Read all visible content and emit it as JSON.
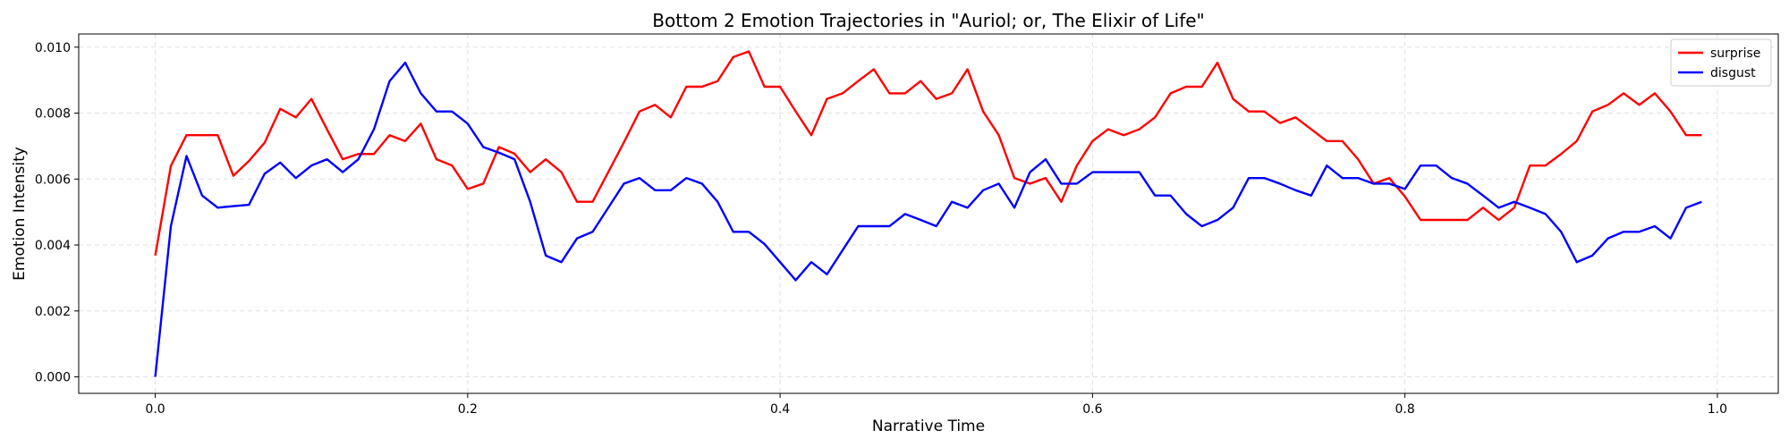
{
  "chart_data": {
    "type": "line",
    "title": "Bottom 2 Emotion Trajectories in \"Auriol; or, The Elixir of Life\"",
    "xlabel": "Narrative Time",
    "ylabel": "Emotion Intensity",
    "xlim": [
      -0.049,
      1.039
    ],
    "ylim": [
      -0.0005,
      0.0104
    ],
    "xticks": [
      0.0,
      0.2,
      0.4,
      0.6,
      0.8,
      1.0
    ],
    "xtick_labels": [
      "0.0",
      "0.2",
      "0.4",
      "0.6",
      "0.8",
      "1.0"
    ],
    "yticks": [
      0.0,
      0.002,
      0.004,
      0.006,
      0.008,
      0.01
    ],
    "ytick_labels": [
      "0.000",
      "0.002",
      "0.004",
      "0.006",
      "0.008",
      "0.010"
    ],
    "grid": true,
    "legend_position": "top-right",
    "x": [
      0.0,
      0.01,
      0.02,
      0.03,
      0.04,
      0.05,
      0.06,
      0.07,
      0.08,
      0.09,
      0.1,
      0.11,
      0.12,
      0.13,
      0.14,
      0.15,
      0.16,
      0.17,
      0.18,
      0.19,
      0.2,
      0.21,
      0.22,
      0.23,
      0.24,
      0.25,
      0.26,
      0.27,
      0.28,
      0.29,
      0.3,
      0.31,
      0.32,
      0.33,
      0.34,
      0.35,
      0.36,
      0.37,
      0.38,
      0.39,
      0.4,
      0.41,
      0.42,
      0.43,
      0.44,
      0.45,
      0.46,
      0.47,
      0.48,
      0.49,
      0.5,
      0.51,
      0.52,
      0.53,
      0.54,
      0.55,
      0.56,
      0.57,
      0.58,
      0.59,
      0.6,
      0.61,
      0.62,
      0.63,
      0.64,
      0.65,
      0.66,
      0.67,
      0.68,
      0.69,
      0.7,
      0.71,
      0.72,
      0.73,
      0.74,
      0.75,
      0.76,
      0.77,
      0.78,
      0.79,
      0.8,
      0.81,
      0.82,
      0.83,
      0.84,
      0.85,
      0.86,
      0.87,
      0.88,
      0.89,
      0.9,
      0.91,
      0.92,
      0.93,
      0.94,
      0.95,
      0.96,
      0.97,
      0.98,
      0.99
    ],
    "series": [
      {
        "name": "surprise",
        "color": "#ff0000",
        "values": [
          0.00368,
          0.0064,
          0.00733,
          0.00733,
          0.00733,
          0.0061,
          0.00655,
          0.0071,
          0.00813,
          0.00787,
          0.00843,
          0.0075,
          0.0066,
          0.00676,
          0.00676,
          0.00733,
          0.00715,
          0.00768,
          0.0066,
          0.00641,
          0.0057,
          0.00586,
          0.00697,
          0.00677,
          0.00621,
          0.0066,
          0.00621,
          0.00531,
          0.00531,
          0.00621,
          0.00711,
          0.00805,
          0.00825,
          0.00787,
          0.0088,
          0.0088,
          0.00897,
          0.0097,
          0.00987,
          0.0088,
          0.0088,
          0.00805,
          0.00733,
          0.00843,
          0.0086,
          0.00897,
          0.00933,
          0.0086,
          0.0086,
          0.00897,
          0.00843,
          0.0086,
          0.00933,
          0.00805,
          0.00733,
          0.00603,
          0.00586,
          0.00603,
          0.00531,
          0.00641,
          0.00715,
          0.00751,
          0.00733,
          0.00751,
          0.00787,
          0.0086,
          0.0088,
          0.0088,
          0.00953,
          0.00843,
          0.00805,
          0.00805,
          0.0077,
          0.00787,
          0.00751,
          0.00715,
          0.00715,
          0.0066,
          0.00586,
          0.00603,
          0.00547,
          0.00476,
          0.00476,
          0.00476,
          0.00476,
          0.00513,
          0.00476,
          0.00513,
          0.00641,
          0.00641,
          0.00676,
          0.00715,
          0.00805,
          0.00825,
          0.0086,
          0.00825,
          0.0086,
          0.00805,
          0.00733,
          0.00733
        ]
      },
      {
        "name": "disgust",
        "color": "#0000ff",
        "values": [
          0.0,
          0.00457,
          0.0067,
          0.0055,
          0.00513,
          0.00518,
          0.00522,
          0.00616,
          0.0065,
          0.00603,
          0.00641,
          0.0066,
          0.00621,
          0.0066,
          0.00751,
          0.00897,
          0.00953,
          0.0086,
          0.00805,
          0.00805,
          0.00768,
          0.00697,
          0.0068,
          0.0066,
          0.00531,
          0.00368,
          0.00348,
          0.0042,
          0.0044,
          0.00513,
          0.00586,
          0.00603,
          0.00566,
          0.00566,
          0.00603,
          0.00586,
          0.00531,
          0.0044,
          0.0044,
          0.00403,
          0.00348,
          0.00293,
          0.00348,
          0.00311,
          0.00384,
          0.00457,
          0.00457,
          0.00457,
          0.00494,
          0.00476,
          0.00457,
          0.00531,
          0.00513,
          0.00566,
          0.00586,
          0.00513,
          0.00621,
          0.0066,
          0.00586,
          0.00586,
          0.00621,
          0.00621,
          0.00621,
          0.00621,
          0.0055,
          0.0055,
          0.00494,
          0.00457,
          0.00476,
          0.00513,
          0.00603,
          0.00603,
          0.00586,
          0.00566,
          0.0055,
          0.00641,
          0.00603,
          0.00603,
          0.00586,
          0.00586,
          0.0057,
          0.00641,
          0.00641,
          0.00603,
          0.00586,
          0.0055,
          0.00513,
          0.00531,
          0.00513,
          0.00494,
          0.0044,
          0.00348,
          0.00368,
          0.0042,
          0.0044,
          0.0044,
          0.00457,
          0.0042,
          0.00513,
          0.00531
        ]
      }
    ]
  }
}
